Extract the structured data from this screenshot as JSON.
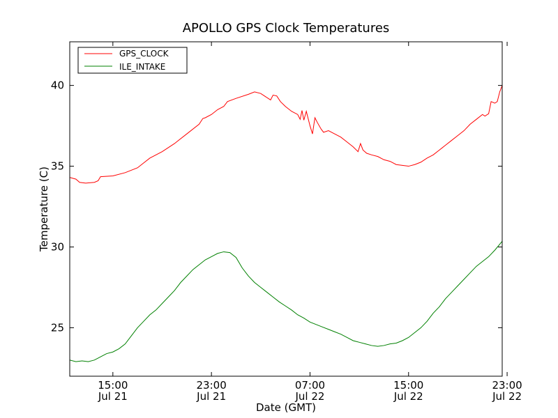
{
  "chart_data": {
    "type": "line",
    "title": "APOLLO GPS Clock Temperatures",
    "xlabel": "Date (GMT)",
    "ylabel": "Temperature (C)",
    "xlim_hours": [
      11.5,
      46.6
    ],
    "ylim": [
      22,
      42.7
    ],
    "y_ticks": [
      25,
      30,
      35,
      40
    ],
    "x_ticks": [
      {
        "x": 15,
        "time": "15:00",
        "date": "Jul 21"
      },
      {
        "x": 23,
        "time": "23:00",
        "date": "Jul 21"
      },
      {
        "x": 31,
        "time": "07:00",
        "date": "Jul 22"
      },
      {
        "x": 39,
        "time": "15:00",
        "date": "Jul 22"
      },
      {
        "x": 47,
        "time": "23:00",
        "date": "Jul 22"
      }
    ],
    "grid": false,
    "legend_position": "top-left",
    "series": [
      {
        "name": "GPS_CLOCK",
        "color": "#ff0000",
        "points": [
          [
            11.5,
            34.3
          ],
          [
            12.0,
            34.2
          ],
          [
            12.3,
            34.0
          ],
          [
            12.8,
            33.95
          ],
          [
            13.5,
            34.0
          ],
          [
            13.8,
            34.1
          ],
          [
            14.0,
            34.35
          ],
          [
            15.0,
            34.4
          ],
          [
            16.0,
            34.6
          ],
          [
            17.0,
            34.9
          ],
          [
            17.5,
            35.2
          ],
          [
            18.0,
            35.5
          ],
          [
            19.0,
            35.9
          ],
          [
            20.0,
            36.4
          ],
          [
            21.0,
            37.0
          ],
          [
            22.0,
            37.6
          ],
          [
            22.3,
            37.95
          ],
          [
            22.5,
            38.0
          ],
          [
            23.0,
            38.2
          ],
          [
            23.5,
            38.5
          ],
          [
            24.0,
            38.7
          ],
          [
            24.3,
            39.0
          ],
          [
            25.0,
            39.2
          ],
          [
            26.0,
            39.45
          ],
          [
            26.5,
            39.6
          ],
          [
            27.0,
            39.5
          ],
          [
            27.3,
            39.35
          ],
          [
            27.8,
            39.1
          ],
          [
            28.0,
            39.4
          ],
          [
            28.3,
            39.35
          ],
          [
            28.6,
            39.0
          ],
          [
            29.0,
            38.7
          ],
          [
            29.5,
            38.4
          ],
          [
            30.0,
            38.2
          ],
          [
            30.2,
            37.9
          ],
          [
            30.35,
            38.45
          ],
          [
            30.5,
            37.85
          ],
          [
            30.7,
            38.4
          ],
          [
            31.0,
            37.5
          ],
          [
            31.2,
            37.0
          ],
          [
            31.4,
            38.0
          ],
          [
            31.6,
            37.7
          ],
          [
            31.9,
            37.3
          ],
          [
            32.1,
            37.1
          ],
          [
            32.5,
            37.2
          ],
          [
            33.0,
            37.0
          ],
          [
            33.5,
            36.8
          ],
          [
            34.0,
            36.5
          ],
          [
            34.5,
            36.2
          ],
          [
            34.9,
            35.9
          ],
          [
            35.1,
            36.4
          ],
          [
            35.3,
            36.0
          ],
          [
            35.6,
            35.8
          ],
          [
            36.0,
            35.7
          ],
          [
            36.5,
            35.6
          ],
          [
            37.0,
            35.4
          ],
          [
            37.5,
            35.3
          ],
          [
            38.0,
            35.1
          ],
          [
            38.5,
            35.05
          ],
          [
            39.0,
            35.0
          ],
          [
            39.5,
            35.1
          ],
          [
            40.0,
            35.25
          ],
          [
            40.5,
            35.5
          ],
          [
            41.0,
            35.7
          ],
          [
            41.5,
            36.0
          ],
          [
            42.0,
            36.3
          ],
          [
            42.5,
            36.6
          ],
          [
            43.0,
            36.9
          ],
          [
            43.5,
            37.2
          ],
          [
            44.0,
            37.6
          ],
          [
            44.5,
            37.9
          ],
          [
            45.0,
            38.2
          ],
          [
            45.2,
            38.1
          ],
          [
            45.5,
            38.25
          ],
          [
            45.7,
            39.0
          ],
          [
            46.0,
            38.9
          ],
          [
            46.2,
            39.0
          ],
          [
            46.4,
            39.6
          ],
          [
            46.6,
            40.0
          ]
        ]
      },
      {
        "name": "ILE_INTAKE",
        "color": "#008000",
        "points": [
          [
            11.5,
            23.0
          ],
          [
            12.0,
            22.9
          ],
          [
            12.5,
            22.95
          ],
          [
            13.0,
            22.9
          ],
          [
            13.5,
            23.0
          ],
          [
            14.0,
            23.2
          ],
          [
            14.5,
            23.4
          ],
          [
            15.0,
            23.5
          ],
          [
            15.5,
            23.7
          ],
          [
            16.0,
            24.0
          ],
          [
            16.5,
            24.5
          ],
          [
            17.0,
            25.0
          ],
          [
            17.5,
            25.4
          ],
          [
            18.0,
            25.8
          ],
          [
            18.5,
            26.1
          ],
          [
            19.0,
            26.5
          ],
          [
            19.5,
            26.9
          ],
          [
            20.0,
            27.3
          ],
          [
            20.5,
            27.8
          ],
          [
            21.0,
            28.2
          ],
          [
            21.5,
            28.6
          ],
          [
            22.0,
            28.9
          ],
          [
            22.5,
            29.2
          ],
          [
            23.0,
            29.4
          ],
          [
            23.5,
            29.6
          ],
          [
            24.0,
            29.7
          ],
          [
            24.5,
            29.65
          ],
          [
            25.0,
            29.35
          ],
          [
            25.5,
            28.7
          ],
          [
            26.0,
            28.2
          ],
          [
            26.5,
            27.8
          ],
          [
            27.0,
            27.5
          ],
          [
            27.5,
            27.2
          ],
          [
            28.0,
            26.9
          ],
          [
            28.5,
            26.6
          ],
          [
            29.0,
            26.35
          ],
          [
            29.5,
            26.1
          ],
          [
            30.0,
            25.8
          ],
          [
            30.5,
            25.6
          ],
          [
            31.0,
            25.35
          ],
          [
            31.5,
            25.2
          ],
          [
            32.0,
            25.05
          ],
          [
            32.5,
            24.9
          ],
          [
            33.0,
            24.75
          ],
          [
            33.5,
            24.6
          ],
          [
            34.0,
            24.4
          ],
          [
            34.5,
            24.2
          ],
          [
            35.0,
            24.1
          ],
          [
            35.5,
            24.0
          ],
          [
            36.0,
            23.9
          ],
          [
            36.5,
            23.85
          ],
          [
            37.0,
            23.9
          ],
          [
            37.5,
            24.0
          ],
          [
            38.0,
            24.05
          ],
          [
            38.5,
            24.2
          ],
          [
            39.0,
            24.4
          ],
          [
            39.5,
            24.7
          ],
          [
            40.0,
            25.0
          ],
          [
            40.5,
            25.4
          ],
          [
            41.0,
            25.9
          ],
          [
            41.5,
            26.3
          ],
          [
            42.0,
            26.8
          ],
          [
            42.5,
            27.2
          ],
          [
            43.0,
            27.6
          ],
          [
            43.5,
            28.0
          ],
          [
            44.0,
            28.4
          ],
          [
            44.5,
            28.8
          ],
          [
            45.0,
            29.1
          ],
          [
            45.5,
            29.4
          ],
          [
            46.0,
            29.8
          ],
          [
            46.6,
            30.35
          ]
        ]
      }
    ]
  }
}
